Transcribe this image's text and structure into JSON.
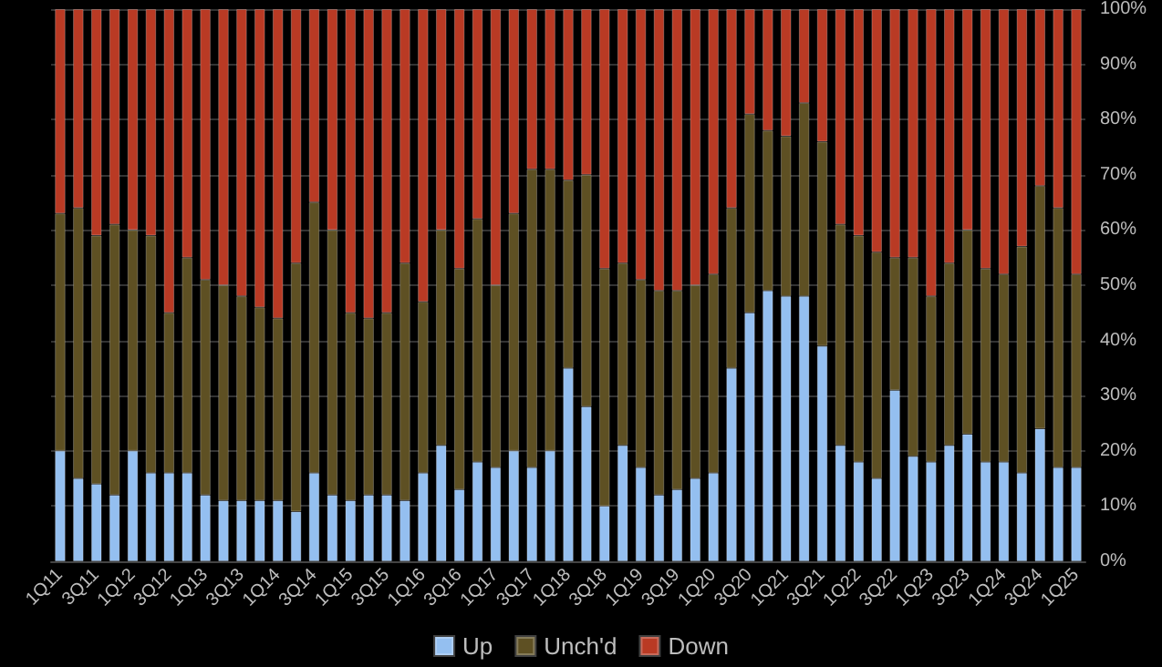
{
  "chart_data": {
    "type": "bar",
    "stacked": true,
    "categories": [
      "1Q11",
      null,
      "3Q11",
      null,
      "1Q12",
      null,
      "3Q12",
      null,
      "1Q13",
      null,
      "3Q13",
      null,
      "1Q14",
      null,
      "3Q14",
      null,
      "1Q15",
      null,
      "3Q15",
      null,
      "1Q16",
      null,
      "3Q16",
      null,
      "1Q17",
      null,
      "3Q17",
      null,
      "1Q18",
      null,
      "3Q18",
      null,
      "1Q19",
      null,
      "3Q19",
      null,
      "1Q20",
      null,
      "3Q20",
      null,
      "1Q21",
      null,
      "3Q21",
      null,
      "1Q22",
      null,
      "3Q22",
      null,
      "1Q23",
      null,
      "3Q23",
      null,
      "1Q24",
      null,
      "3Q24",
      null,
      "1Q25"
    ],
    "series": [
      {
        "name": "Up",
        "color": "#94bff0",
        "values": [
          20,
          15,
          14,
          12,
          20,
          16,
          16,
          16,
          12,
          11,
          11,
          11,
          11,
          9,
          16,
          12,
          11,
          12,
          12,
          11,
          16,
          21,
          13,
          18,
          17,
          20,
          17,
          20,
          35,
          28,
          10,
          21,
          17,
          12,
          13,
          15,
          16,
          35,
          45,
          49,
          48,
          48,
          39,
          21,
          18,
          15,
          31,
          19,
          18,
          21,
          23,
          18,
          18,
          16,
          24,
          17,
          17
        ]
      },
      {
        "name": "Unch'd",
        "color": "#5e5023",
        "values": [
          43,
          49,
          45,
          49,
          40,
          43,
          29,
          39,
          39,
          39,
          37,
          35,
          33,
          45,
          49,
          48,
          34,
          32,
          33,
          43,
          31,
          39,
          40,
          44,
          33,
          43,
          54,
          51,
          34,
          42,
          43,
          33,
          34,
          37,
          36,
          35,
          36,
          29,
          36,
          29,
          29,
          35,
          37,
          40,
          41,
          41,
          24,
          36,
          30,
          33,
          37,
          35,
          34,
          41,
          44,
          47,
          35
        ]
      },
      {
        "name": "Down",
        "color": "#b93a24",
        "values": [
          37,
          36,
          41,
          39,
          40,
          41,
          55,
          45,
          49,
          50,
          52,
          54,
          56,
          46,
          35,
          40,
          55,
          56,
          55,
          46,
          53,
          40,
          47,
          38,
          50,
          37,
          29,
          29,
          31,
          30,
          47,
          46,
          49,
          51,
          51,
          50,
          48,
          36,
          19,
          22,
          23,
          17,
          24,
          39,
          41,
          44,
          45,
          45,
          52,
          46,
          40,
          47,
          48,
          43,
          32,
          36,
          48
        ]
      }
    ],
    "ylim": [
      0,
      100
    ],
    "yticks": [
      {
        "value": 0,
        "label": "0%"
      },
      {
        "value": 10,
        "label": "10%"
      },
      {
        "value": 20,
        "label": "20%"
      },
      {
        "value": 30,
        "label": "30%"
      },
      {
        "value": 40,
        "label": "40%"
      },
      {
        "value": 50,
        "label": "50%"
      },
      {
        "value": 60,
        "label": "60%"
      },
      {
        "value": 70,
        "label": "70%"
      },
      {
        "value": 80,
        "label": "80%"
      },
      {
        "value": 90,
        "label": "90%"
      },
      {
        "value": 100,
        "label": "100%"
      }
    ],
    "grid": "y",
    "legend": "bottom"
  }
}
